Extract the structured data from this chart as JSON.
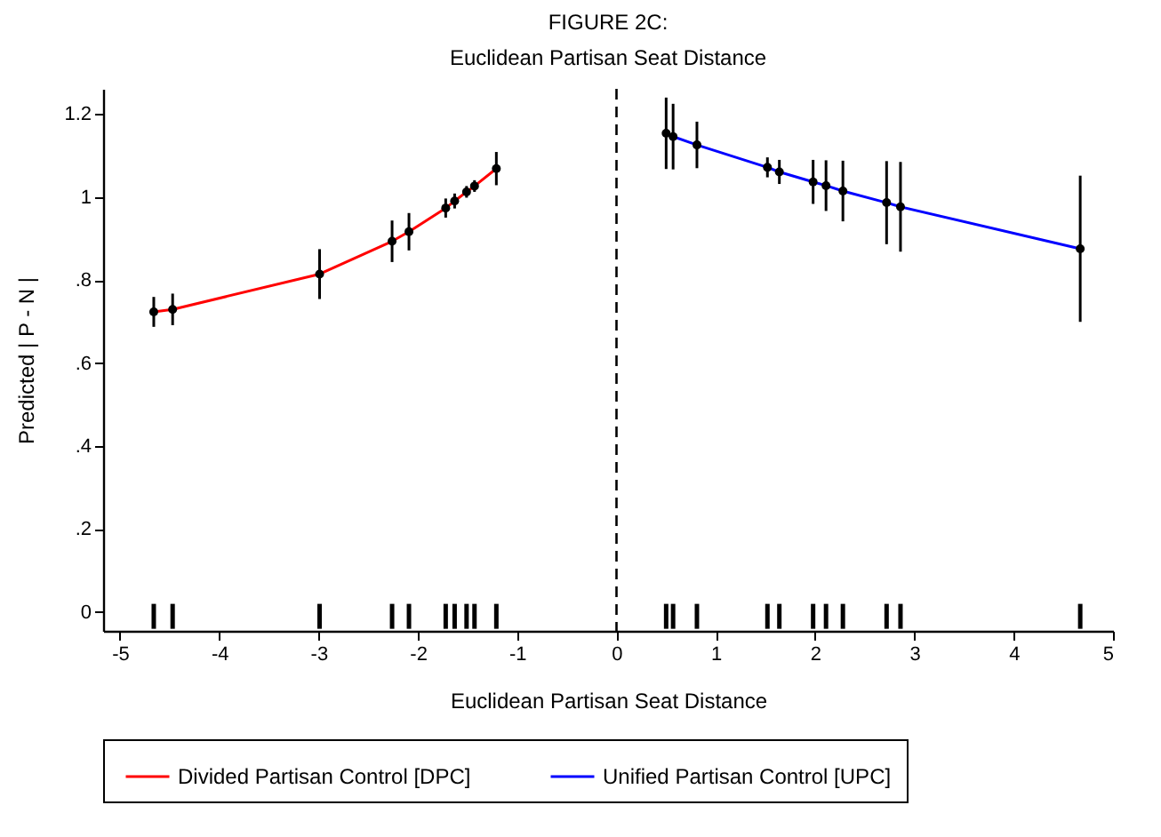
{
  "chart_data": {
    "type": "line",
    "title": "FIGURE 2C:",
    "subtitle": "Euclidean Partisan Seat Distance",
    "xlabel": "Euclidean Partisan Seat Distance",
    "ylabel": "Predicted | P - N |",
    "xlim": [
      -5.17,
      5
    ],
    "xticks": [
      -5,
      -4,
      -3,
      -2,
      -1,
      0,
      1,
      2,
      3,
      4,
      5
    ],
    "ylim": [
      -0.045,
      1.26
    ],
    "yticks": [
      0,
      {
        "value": 0.2,
        "label": ".2"
      },
      {
        "value": 0.4,
        "label": ".4"
      },
      {
        "value": 0.6,
        "label": ".6"
      },
      {
        "value": 0.8,
        "label": ".8"
      },
      1,
      1.2
    ],
    "grid": false,
    "legend": "bottom",
    "marker": "circle",
    "line_style": "solid",
    "ref_lines": [
      {
        "axis": "x",
        "value": 0,
        "label": null,
        "color": "#000000",
        "line_style": "dashed"
      }
    ],
    "series": [
      {
        "name": "Divided Partisan Control [DPC]",
        "color": "#ff0000",
        "x": [
          -4.66,
          -4.47,
          -2.99,
          -2.26,
          -2.09,
          -1.72,
          -1.63,
          -1.51,
          -1.43,
          -1.21
        ],
        "values": [
          0.723,
          0.729,
          0.814,
          0.893,
          0.916,
          0.973,
          0.99,
          1.012,
          1.026,
          1.068
        ],
        "errors": [
          0.036,
          0.038,
          0.06,
          0.05,
          0.045,
          0.023,
          0.018,
          0.014,
          0.014,
          0.04
        ]
      },
      {
        "name": "Unified Partisan Control [UPC]",
        "color": "#0000ff",
        "x": [
          0.5,
          0.57,
          0.81,
          1.52,
          1.64,
          1.98,
          2.11,
          2.28,
          2.72,
          2.86,
          4.67
        ],
        "values": [
          1.153,
          1.145,
          1.125,
          1.071,
          1.06,
          1.036,
          1.027,
          1.014,
          0.986,
          0.976,
          0.875
        ],
        "errors": [
          0.086,
          0.079,
          0.056,
          0.024,
          0.029,
          0.053,
          0.061,
          0.073,
          0.1,
          0.108,
          0.176
        ]
      },
      {
        "type": "bar",
        "color": "#000000",
        "x": [
          -4.66,
          -4.47,
          -2.99,
          -2.26,
          -2.09,
          -1.72,
          -1.63,
          -1.51,
          -1.43,
          -1.21,
          0.5,
          0.57,
          0.81,
          1.52,
          1.64,
          1.98,
          2.11,
          2.28,
          2.72,
          2.86,
          4.67
        ],
        "base": [
          -0.04,
          -0.04,
          -0.04,
          -0.04,
          -0.04,
          -0.04,
          -0.04,
          -0.04,
          -0.04,
          -0.04,
          -0.04,
          -0.04,
          -0.04,
          -0.04,
          -0.04,
          -0.04,
          -0.04,
          -0.04,
          -0.04,
          -0.04,
          -0.04
        ],
        "values": [
          0.06,
          0.06,
          0.06,
          0.06,
          0.06,
          0.06,
          0.06,
          0.06,
          0.06,
          0.06,
          0.06,
          0.06,
          0.06,
          0.06,
          0.06,
          0.06,
          0.06,
          0.06,
          0.06,
          0.06,
          0.06
        ]
      }
    ]
  }
}
